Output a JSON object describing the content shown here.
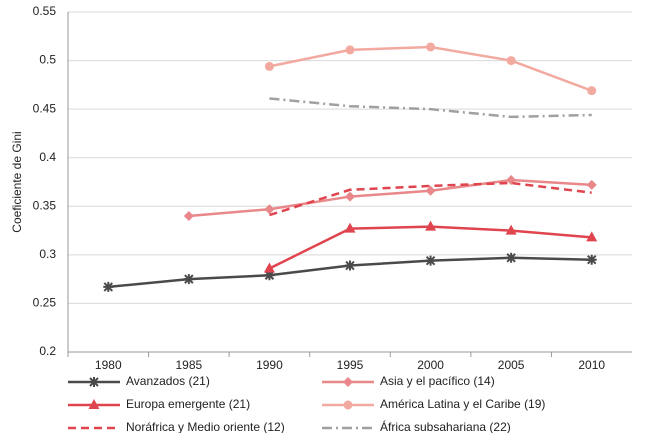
{
  "chart_data": {
    "type": "line",
    "y_label": "Coeficiente de Gini",
    "categories": [
      "1980",
      "1985",
      "1990",
      "1995",
      "2000",
      "2005",
      "2010"
    ],
    "ylim": [
      0.2,
      0.55
    ],
    "yticks": [
      0.2,
      0.25,
      0.3,
      0.35,
      0.4,
      0.45,
      0.5,
      0.55
    ],
    "grid": true,
    "legend": "bottom",
    "series": [
      {
        "name": "Avanzados (21)",
        "color": "#4a4a4a",
        "marker": "asterisk",
        "dash": "solid",
        "values": [
          0.267,
          0.275,
          0.279,
          0.289,
          0.294,
          0.297,
          0.295
        ]
      },
      {
        "name": "Asia y el pacífico (14)",
        "color": "#e8888a",
        "marker": "diamond",
        "dash": "solid",
        "values": [
          null,
          0.34,
          0.347,
          0.36,
          0.366,
          0.377,
          0.372
        ]
      },
      {
        "name": "Europa emergente (21)",
        "color": "#e0454f",
        "marker": "triangle",
        "dash": "solid",
        "values": [
          null,
          null,
          0.286,
          0.327,
          0.329,
          0.325,
          0.318
        ]
      },
      {
        "name": "América Latina y el Caribe (19)",
        "color": "#f2a9a0",
        "marker": "circle",
        "dash": "solid",
        "values": [
          null,
          null,
          0.494,
          0.511,
          0.514,
          0.5,
          0.469
        ]
      },
      {
        "name": "Noráfrica y Medio oriente (12)",
        "color": "#e0454f",
        "marker": "none",
        "dash": "dash",
        "values": [
          null,
          null,
          0.341,
          0.367,
          0.371,
          0.374,
          0.364
        ]
      },
      {
        "name": "África subsahariana (22)",
        "color": "#a0a0a0",
        "marker": "none",
        "dash": "dashdot",
        "values": [
          null,
          null,
          0.461,
          0.453,
          0.45,
          0.442,
          0.444
        ]
      }
    ]
  }
}
